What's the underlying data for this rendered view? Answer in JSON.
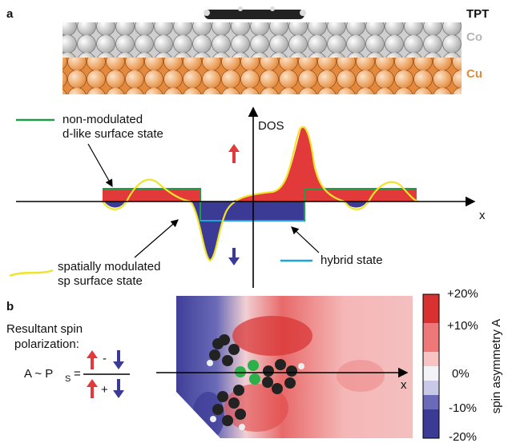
{
  "panel_a": {
    "label": "a",
    "layers": {
      "molecule": "TPT",
      "co": "Co",
      "cu": "Cu"
    },
    "legend": {
      "non_modulated": [
        "non-modulated",
        "d-like surface state"
      ],
      "spatially_modulated": [
        "spatially modulated",
        "sp surface state"
      ],
      "hybrid": "hybrid state"
    },
    "axis": {
      "y": "DOS",
      "x": "x"
    }
  },
  "panel_b": {
    "label": "b",
    "formula": {
      "caption": [
        "Resultant spin",
        "polarization:"
      ],
      "lhs": "A ~ P",
      "subscript": "S",
      "equals": "=",
      "minus": "-",
      "plus": "+"
    },
    "map": {
      "x": "x"
    },
    "colorbar": {
      "title": "spin asymmetry A",
      "ticks": [
        "+20%",
        "+10%",
        "0%",
        "-10%",
        "-20%"
      ]
    }
  }
}
